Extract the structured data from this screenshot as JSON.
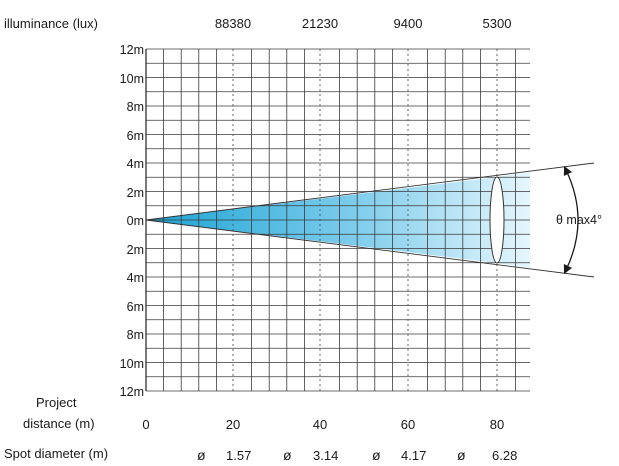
{
  "header": {
    "illuminance_label": "illuminance (lux)",
    "illuminance_values": [
      "88380",
      "21230",
      "9400",
      "5300"
    ]
  },
  "y_axis": {
    "labels": [
      "12m",
      "10m",
      "8m",
      "6m",
      "4m",
      "2m",
      "0m",
      "2m",
      "4m",
      "6m",
      "8m",
      "10m",
      "12m"
    ]
  },
  "x_axis": {
    "label_line1": "Project",
    "label_line2": "distance (m)",
    "ticks": [
      "0",
      "20",
      "40",
      "60",
      "80"
    ]
  },
  "spot_diameter": {
    "label": "Spot diameter (m)",
    "symbol": "ø",
    "values": [
      "1.57",
      "3.14",
      "4.17",
      "6.28"
    ]
  },
  "beam": {
    "angle_label": "θ max4°",
    "color_start": "#1aa3d4",
    "color_end": "#e6f6fc"
  },
  "grid_color": "#3a3a3a"
}
